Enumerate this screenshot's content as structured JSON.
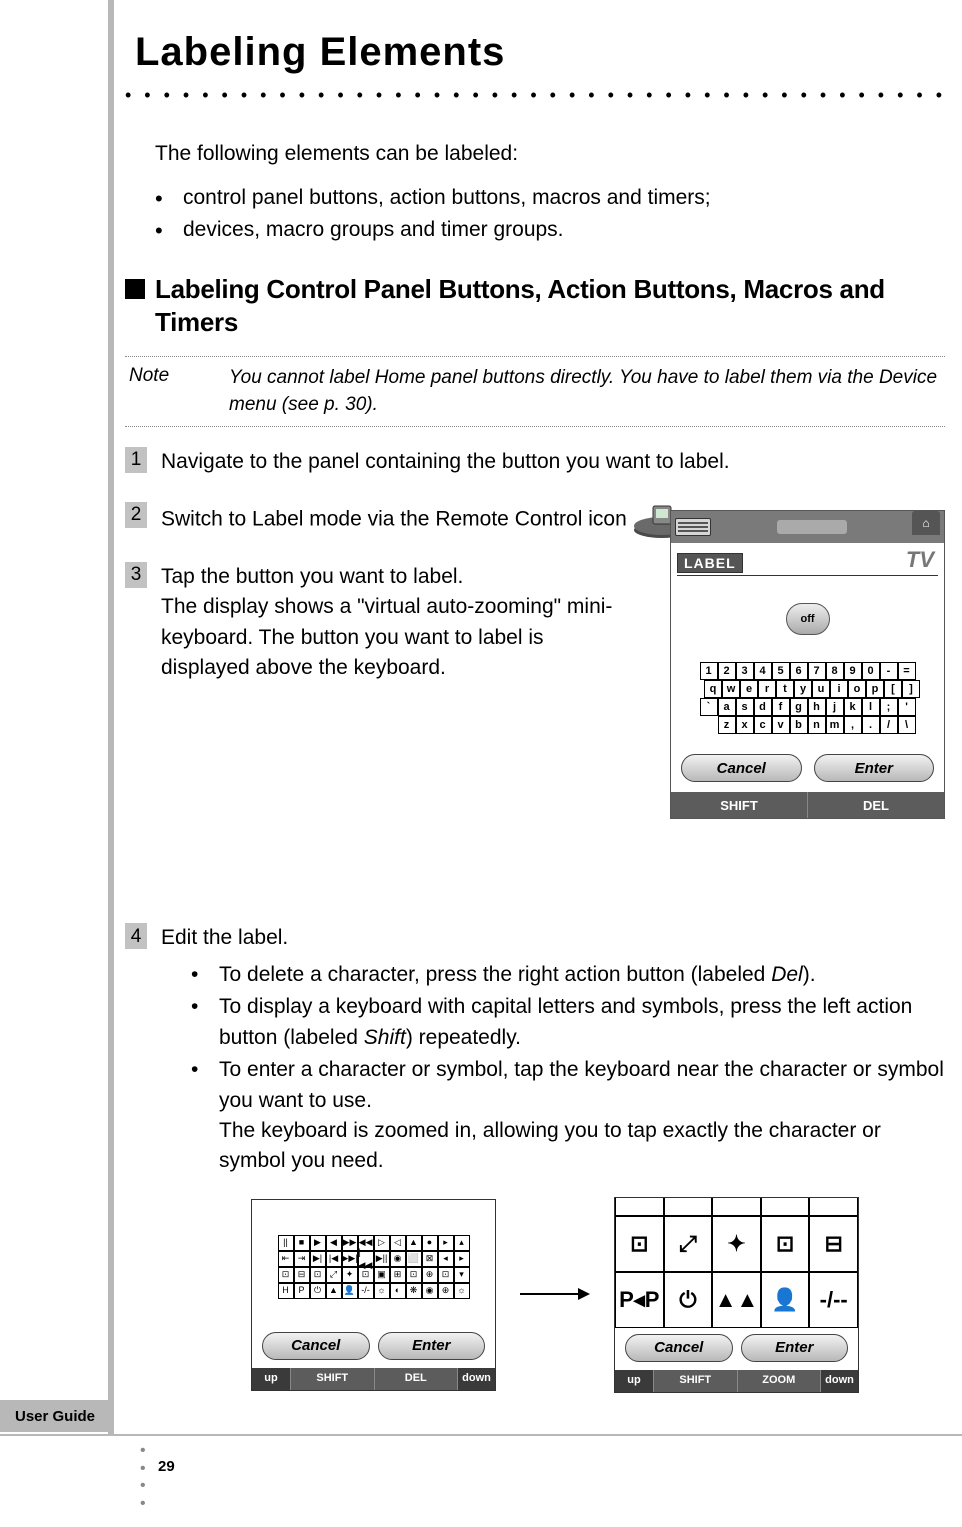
{
  "title": "Labeling Elements",
  "intro": "The following elements can be labeled:",
  "main_bullets": [
    "control panel buttons, action buttons, macros and timers;",
    "devices, macro groups and timer groups."
  ],
  "section_heading": "Labeling Control Panel Buttons, Action Buttons, Macros and Timers",
  "note": {
    "label": "Note",
    "text": "You cannot label Home panel buttons directly. You have to label them via the Device menu (see p. 30)."
  },
  "steps": {
    "s1": {
      "num": "1",
      "text": "Navigate to the panel containing the button you want to label."
    },
    "s2": {
      "num": "2",
      "text_before": "Switch to Label mode via the Remote Control icon ",
      "text_after": "."
    },
    "s3": {
      "num": "3",
      "head": "Tap the button you want to label.",
      "sub": "The display shows a \"virtual auto-zooming\" mini-keyboard. The button you want to label is displayed above the keyboard."
    },
    "s4": {
      "num": "4",
      "head": "Edit the label.",
      "bullets": [
        {
          "pre": "To delete a character, press the right action button (labeled ",
          "ital": "Del",
          "post": ")."
        },
        {
          "pre": "To display a keyboard with capital letters and symbols, press the left action button (labeled ",
          "ital": "Shift",
          "post": ") repeatedly."
        },
        {
          "pre": "To enter a character or symbol, tap the keyboard near the character or symbol you want to use.",
          "ital": "",
          "post": "",
          "extra": "The keyboard is zoomed in, allowing you to tap exactly the character or symbol you need."
        }
      ]
    }
  },
  "device": {
    "label_tag": "LABEL",
    "tv": "TV",
    "off": "off",
    "rows": {
      "r1": [
        "1",
        "2",
        "3",
        "4",
        "5",
        "6",
        "7",
        "8",
        "9",
        "0",
        "-",
        "="
      ],
      "r2": [
        "q",
        "w",
        "e",
        "r",
        "t",
        "y",
        "u",
        "i",
        "o",
        "p",
        "[",
        "]"
      ],
      "r3": [
        "`",
        "a",
        "s",
        "d",
        "f",
        "g",
        "h",
        "j",
        "k",
        "l",
        ";",
        "'"
      ],
      "r4": [
        "z",
        "x",
        "c",
        "v",
        "b",
        "n",
        "m",
        ",",
        ".",
        "/",
        "\\"
      ]
    },
    "cancel": "Cancel",
    "enter": "Enter",
    "shift": "SHIFT",
    "del": "DEL"
  },
  "panel_left": {
    "cancel": "Cancel",
    "enter": "Enter",
    "up": "up",
    "shift": "SHIFT",
    "del": "DEL",
    "down": "down"
  },
  "panel_right": {
    "icons_row1": [
      "⊡",
      "⤢",
      "✦",
      "⊡",
      "⊟"
    ],
    "icons_row2": [
      "P◂P",
      "⏻",
      "▲▲",
      "👤",
      "-/--"
    ],
    "cancel": "Cancel",
    "enter": "Enter",
    "up": "up",
    "shift": "SHIFT",
    "zoom": "ZOOM",
    "down": "down"
  },
  "footer": {
    "user_guide": "User Guide",
    "page": "29"
  },
  "colors": {
    "sidebar": "#b8b8b8",
    "step_num_bg": "#c2c2c2",
    "device_gray": "#7a7a7a",
    "bottom_bar": "#5c5c5c"
  }
}
